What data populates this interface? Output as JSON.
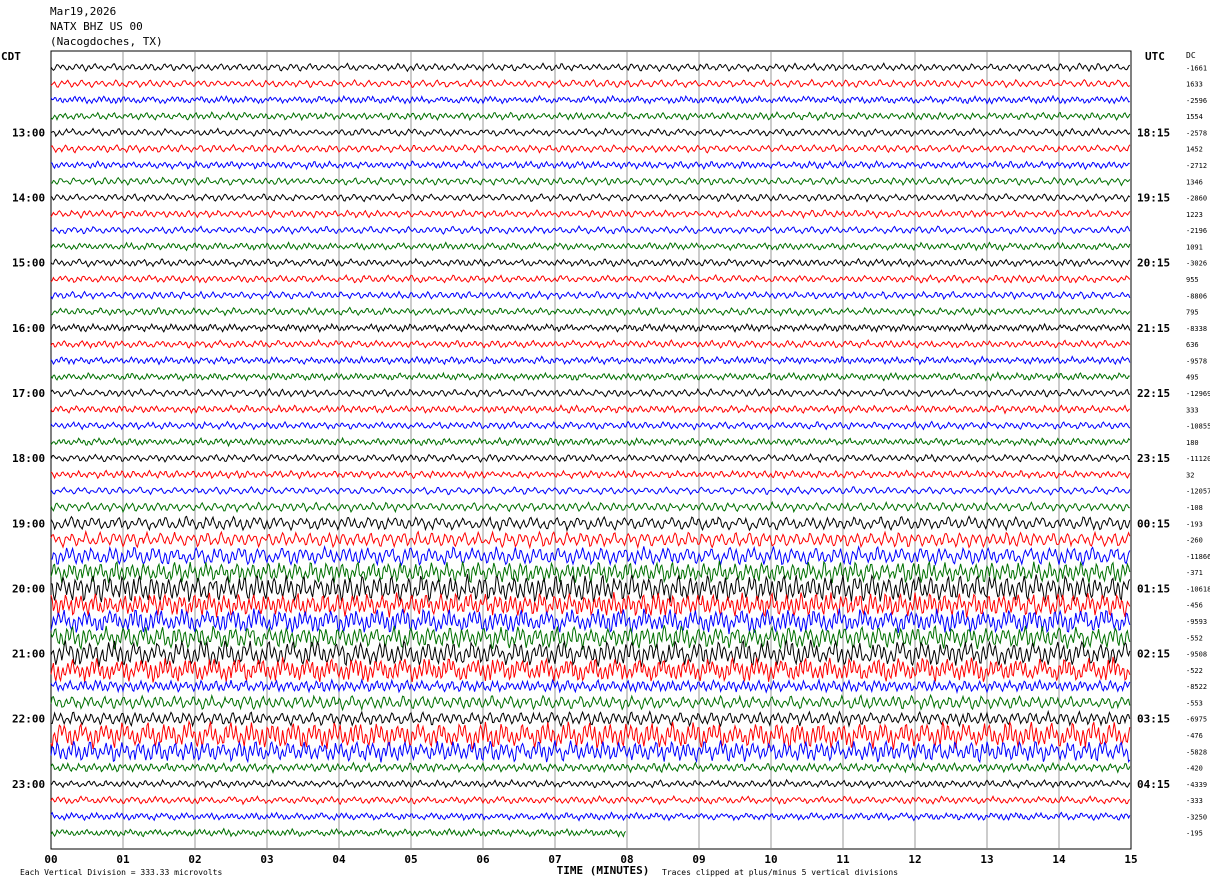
{
  "header": {
    "date": "Mar19,2026",
    "station": "NATX BHZ US 00",
    "location": "(Nacogdoches, TX)"
  },
  "chart_data": {
    "type": "line",
    "title": "Mar19,2026 NATX BHZ US 00 (Nacogdoches, TX)",
    "left_axis_label": "CDT",
    "right_axis_label": "UTC",
    "right_column_header": "DC",
    "xlabel": "TIME (MINUTES)",
    "xlim": [
      0,
      15
    ],
    "x_ticks": [
      "00",
      "01",
      "02",
      "03",
      "04",
      "05",
      "06",
      "07",
      "08",
      "09",
      "10",
      "11",
      "12",
      "13",
      "14",
      "15"
    ],
    "left_time_labels": [
      "13:00",
      "14:00",
      "15:00",
      "16:00",
      "17:00",
      "18:00",
      "19:00",
      "20:00",
      "21:00",
      "22:00",
      "23:00"
    ],
    "right_time_labels": [
      "18:15",
      "19:15",
      "20:15",
      "21:15",
      "22:15",
      "23:15",
      "00:15",
      "01:15",
      "02:15",
      "03:15",
      "04:15"
    ],
    "trace_count": 48,
    "traces_per_hour": 4,
    "first_labeled_trace": 4,
    "last_trace_end_minute": 8.0,
    "trace_colors": [
      "#000000",
      "#ff0000",
      "#0000ff",
      "#007000"
    ],
    "dc_offsets": [
      "-1661",
      "1633",
      "-2596",
      "1554",
      "-2578",
      "1452",
      "-2712",
      "1346",
      "-2860",
      "1223",
      "-2196",
      "1091",
      "-3026",
      "955",
      "-8806",
      "795",
      "-8338",
      "636",
      "-9578",
      "495",
      "-12969",
      "333",
      "-10855",
      "180",
      "-11120",
      "32",
      "-12057",
      "-108",
      "-193",
      "-260",
      "-11866",
      "-371",
      "-10618",
      "-456",
      "-9593",
      "-552",
      "-9508",
      "-522",
      "-8522",
      "-553",
      "-6975",
      "-476",
      "-5828",
      "-420",
      "-4339",
      "-333",
      "-3250",
      "-195"
    ],
    "relative_amplitude_by_trace": [
      0.25,
      0.25,
      0.25,
      0.25,
      0.25,
      0.25,
      0.25,
      0.25,
      0.25,
      0.25,
      0.25,
      0.25,
      0.25,
      0.25,
      0.25,
      0.25,
      0.25,
      0.25,
      0.25,
      0.25,
      0.25,
      0.25,
      0.25,
      0.25,
      0.25,
      0.25,
      0.25,
      0.3,
      0.45,
      0.5,
      0.6,
      0.7,
      0.9,
      0.8,
      0.8,
      0.75,
      0.85,
      0.8,
      0.4,
      0.45,
      0.45,
      0.9,
      0.7,
      0.3,
      0.25,
      0.25,
      0.25,
      0.25
    ],
    "footer_left": "Each Vertical Division = 333.33 microvolts",
    "footer_right": "Traces clipped at plus/minus 5 vertical divisions",
    "grid": true
  }
}
